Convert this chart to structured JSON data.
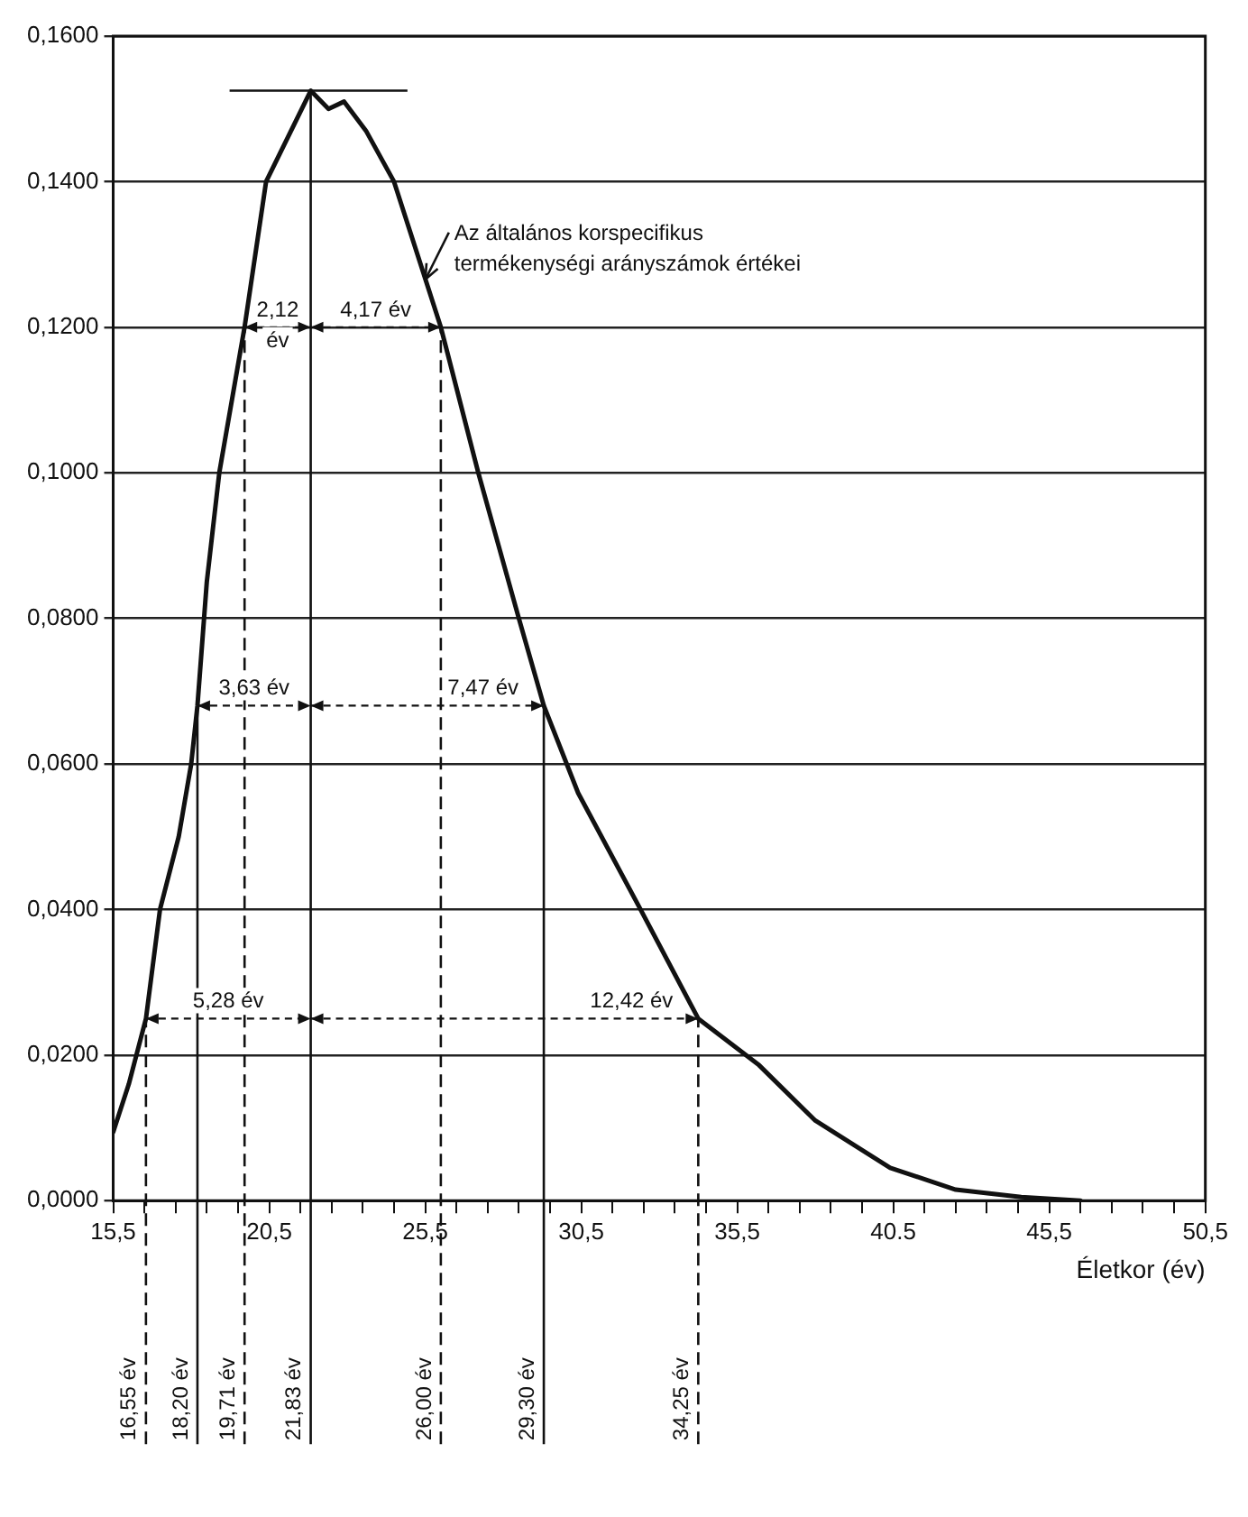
{
  "chart_data": {
    "type": "line",
    "xlabel": "Életkor (év)",
    "series": [
      {
        "name": "Az általános korspecifikus termékenységi arányszámok értékei",
        "color": "#111111",
        "x": [
          15.5,
          16.0,
          16.55,
          17.0,
          17.6,
          18.0,
          18.2,
          18.5,
          18.9,
          19.71,
          20.4,
          21.83,
          22.4,
          22.9,
          23.6,
          24.5,
          26.0,
          27.2,
          28.5,
          29.3,
          30.4,
          32.4,
          34.25,
          36.2,
          38.0,
          40.4,
          42.5,
          44.6,
          46.5
        ],
        "values": [
          0.0094,
          0.016,
          0.025,
          0.04,
          0.05,
          0.06,
          0.068,
          0.085,
          0.1,
          0.12,
          0.14,
          0.1525,
          0.15,
          0.151,
          0.147,
          0.14,
          0.12,
          0.1,
          0.08,
          0.068,
          0.056,
          0.04,
          0.025,
          0.0186,
          0.011,
          0.0045,
          0.0015,
          0.0005,
          0
        ]
      }
    ],
    "xlim": [
      15.5,
      50.5
    ],
    "xticks": [
      {
        "value": 15.5,
        "label": "15,5"
      },
      {
        "value": 16.5,
        "label": null
      },
      {
        "value": 17.5,
        "label": null
      },
      {
        "value": 18.5,
        "label": null
      },
      {
        "value": 19.5,
        "label": null
      },
      {
        "value": 20.5,
        "label": "20,5"
      },
      {
        "value": 21.5,
        "label": null
      },
      {
        "value": 22.5,
        "label": null
      },
      {
        "value": 23.5,
        "label": null
      },
      {
        "value": 24.5,
        "label": null
      },
      {
        "value": 25.5,
        "label": "25,5"
      },
      {
        "value": 26.5,
        "label": null
      },
      {
        "value": 27.5,
        "label": null
      },
      {
        "value": 28.5,
        "label": null
      },
      {
        "value": 29.5,
        "label": null
      },
      {
        "value": 30.5,
        "label": "30,5"
      },
      {
        "value": 31.5,
        "label": null
      },
      {
        "value": 32.5,
        "label": null
      },
      {
        "value": 33.5,
        "label": null
      },
      {
        "value": 34.5,
        "label": null
      },
      {
        "value": 35.5,
        "label": "35,5"
      },
      {
        "value": 36.5,
        "label": null
      },
      {
        "value": 37.5,
        "label": null
      },
      {
        "value": 38.5,
        "label": null
      },
      {
        "value": 39.5,
        "label": null
      },
      {
        "value": 40.5,
        "label": "40.5"
      },
      {
        "value": 41.5,
        "label": null
      },
      {
        "value": 42.5,
        "label": null
      },
      {
        "value": 43.5,
        "label": null
      },
      {
        "value": 44.5,
        "label": null
      },
      {
        "value": 45.5,
        "label": "45,5"
      },
      {
        "value": 46.5,
        "label": null
      },
      {
        "value": 47.5,
        "label": null
      },
      {
        "value": 48.5,
        "label": null
      },
      {
        "value": 49.5,
        "label": null
      },
      {
        "value": 50.5,
        "label": "50,5"
      }
    ],
    "ylim": [
      0,
      0.16
    ],
    "yticks": [
      {
        "value": 0,
        "label": "0,0000"
      },
      {
        "value": 0.02,
        "label": "0,0200"
      },
      {
        "value": 0.04,
        "label": "0,0400"
      },
      {
        "value": 0.06,
        "label": "0,0600"
      },
      {
        "value": 0.08,
        "label": "0,0800"
      },
      {
        "value": 0.1,
        "label": "0,1000"
      },
      {
        "value": 0.12,
        "label": "0,1200"
      },
      {
        "value": 0.14,
        "label": "0,1400"
      },
      {
        "value": 0.16,
        "label": "0,1600"
      }
    ],
    "ref_lines": [
      {
        "axis": "x",
        "value": 16.55,
        "label": "16,55 év",
        "line_style": "dashed"
      },
      {
        "axis": "x",
        "value": 18.2,
        "label": "18,20 év",
        "line_style": "solid"
      },
      {
        "axis": "x",
        "value": 19.71,
        "label": "19,71 év",
        "line_style": "dashed"
      },
      {
        "axis": "x",
        "value": 21.83,
        "label": "21,83 év",
        "line_style": "solid"
      },
      {
        "axis": "x",
        "value": 26.0,
        "label": "26,00 év",
        "line_style": "dashed"
      },
      {
        "axis": "x",
        "value": 29.3,
        "label": "29,30 év",
        "line_style": "solid"
      },
      {
        "axis": "x",
        "value": 34.25,
        "label": "34,25 év",
        "line_style": "dashed"
      },
      {
        "axis": "y",
        "value": 0.1525,
        "line_style": "solid"
      }
    ],
    "annotations": [
      {
        "text": "2,12 év",
        "x": 19.71,
        "y": 0.12
      },
      {
        "text": "4,17 év",
        "x": 26.0,
        "y": 0.12
      },
      {
        "text": "3,63 év",
        "x": 18.2,
        "y": 0.068
      },
      {
        "text": "7,47 év",
        "x": 29.3,
        "y": 0.068
      },
      {
        "text": "5,28 év",
        "x": 16.55,
        "y": 0.025
      },
      {
        "text": "12,42 év",
        "x": 34.25,
        "y": 0.025
      }
    ],
    "grid": "y",
    "marker": "none",
    "line_style": "solid"
  }
}
